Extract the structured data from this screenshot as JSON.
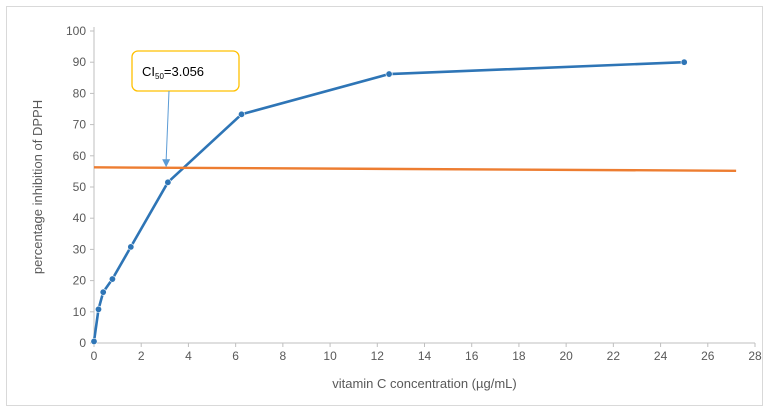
{
  "chart_data": {
    "type": "scatter",
    "title": "",
    "xlabel": "vitamin C concentration (µg/mL)",
    "ylabel": "percentage inhibition of DPPH",
    "xlim": [
      0,
      28
    ],
    "ylim": [
      0,
      100
    ],
    "x_ticks": [
      "0",
      "2",
      "4",
      "6",
      "8",
      "10",
      "12",
      "14",
      "16",
      "18",
      "20",
      "22",
      "24",
      "26",
      "28"
    ],
    "y_ticks": [
      "0",
      "10",
      "20",
      "30",
      "40",
      "50",
      "60",
      "70",
      "80",
      "90",
      "100"
    ],
    "grid": false,
    "legend": "none",
    "series": [
      {
        "color": "#2e75b6",
        "marker": "circle",
        "points": [
          {
            "x": 0.0,
            "y": 0.5
          },
          {
            "x": 0.19,
            "y": 10.8
          },
          {
            "x": 0.39,
            "y": 16.3
          },
          {
            "x": 0.78,
            "y": 20.5
          },
          {
            "x": 1.56,
            "y": 30.8
          },
          {
            "x": 3.13,
            "y": 51.5
          },
          {
            "x": 6.25,
            "y": 73.3
          },
          {
            "x": 12.5,
            "y": 86.2
          },
          {
            "x": 25.0,
            "y": 90.0
          }
        ]
      },
      {
        "color": "#ed7d31",
        "marker": "none",
        "points": [
          {
            "x": 0.0,
            "y": 56.3
          },
          {
            "x": 27.2,
            "y": 55.2
          }
        ]
      }
    ],
    "annotation": {
      "text_main": "CI",
      "text_sub": "50",
      "text_value": "=3.056",
      "box_border_color": "#ffc000",
      "arrow_color": "#5b9bd5",
      "arrow_target": {
        "x": 3.056,
        "y": 56.0
      }
    }
  }
}
